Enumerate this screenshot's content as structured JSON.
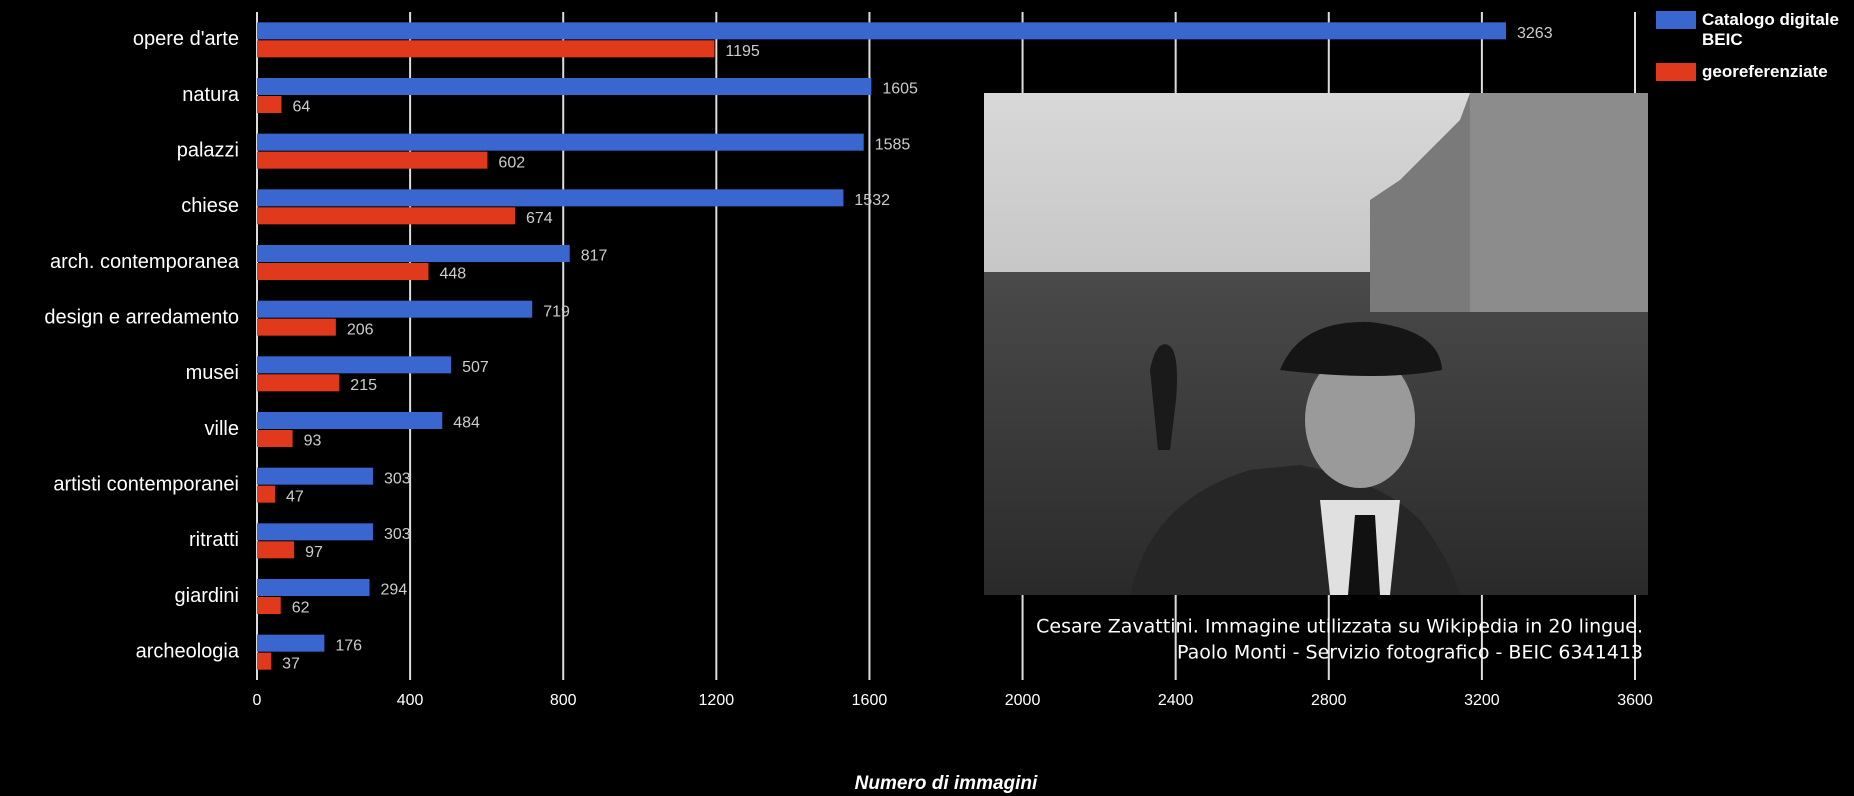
{
  "chart_data": {
    "type": "hbar",
    "x_label": "Numero di immagini",
    "categories": [
      "opere d'arte",
      "natura",
      "palazzi",
      "chiese",
      "arch. contemporanea",
      "design e arredamento",
      "musei",
      "ville",
      "artisti contemporanei",
      "ritratti",
      "giardini",
      "archeologia"
    ],
    "series": [
      {
        "name": "Catalogo digitale BEIC",
        "color": "#3a66d0",
        "values": [
          3263,
          1605,
          1585,
          1532,
          817,
          719,
          507,
          484,
          303,
          303,
          294,
          176
        ]
      },
      {
        "name": "georeferenziate",
        "color": "#e0391b",
        "values": [
          1195,
          64,
          602,
          674,
          448,
          206,
          215,
          93,
          47,
          97,
          62,
          37
        ]
      }
    ],
    "xlim": [
      0,
      3600
    ],
    "xticks": [
      0,
      400,
      800,
      1200,
      1600,
      2000,
      2400,
      2800,
      3200,
      3600
    ],
    "grid": true,
    "legend": "top-right",
    "annotations": [
      "Cesare Zavattini. Immagine utilizzata su Wikipedia in 20 lingue.",
      "Paolo Monti - Servizio fotografico - BEIC 6341413"
    ]
  }
}
